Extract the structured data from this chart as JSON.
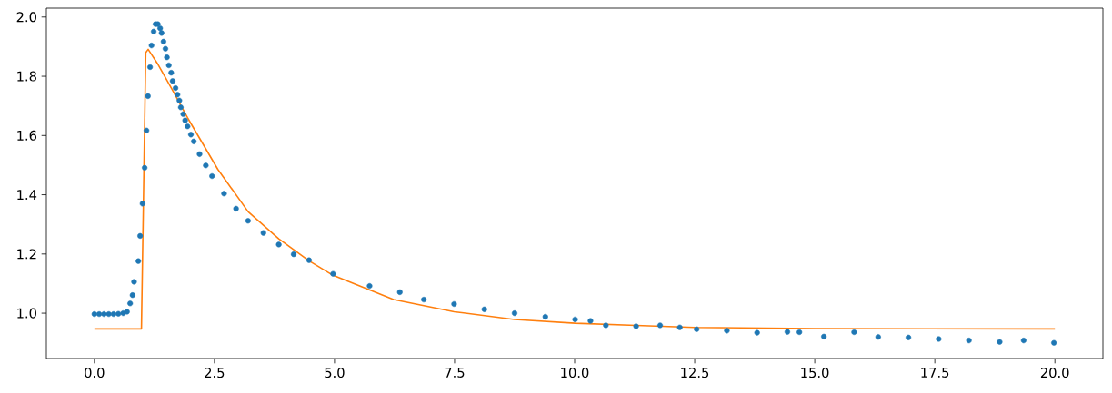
{
  "chart_data": {
    "type": "scatter",
    "xlim": [
      -1,
      21
    ],
    "ylim": [
      0.847,
      2.03
    ],
    "xticks": [
      {
        "value": 0,
        "label": "0.0"
      },
      {
        "value": 2.5,
        "label": "2.5"
      },
      {
        "value": 5,
        "label": "5.0"
      },
      {
        "value": 7.5,
        "label": "7.5"
      },
      {
        "value": 10,
        "label": "10.0"
      },
      {
        "value": 12.5,
        "label": "12.5"
      },
      {
        "value": 15,
        "label": "15.0"
      },
      {
        "value": 17.5,
        "label": "17.5"
      },
      {
        "value": 20,
        "label": "20.0"
      }
    ],
    "yticks": [
      {
        "value": 1,
        "label": "1.0"
      },
      {
        "value": 1.2,
        "label": "1.2"
      },
      {
        "value": 1.4,
        "label": "1.4"
      },
      {
        "value": 1.6,
        "label": "1.6"
      },
      {
        "value": 1.8,
        "label": "1.8"
      },
      {
        "value": 2,
        "label": "2.0"
      }
    ],
    "series": [
      {
        "marker": "circle",
        "color": "#1f77b4",
        "x": [
          0.0,
          0.1,
          0.2,
          0.3,
          0.4,
          0.5,
          0.6,
          0.68,
          0.745,
          0.795,
          0.826,
          0.915,
          0.953,
          1.003,
          1.047,
          1.085,
          1.116,
          1.16,
          1.19,
          1.235,
          1.274,
          1.32,
          1.37,
          1.4,
          1.44,
          1.48,
          1.51,
          1.55,
          1.6,
          1.63,
          1.69,
          1.73,
          1.77,
          1.8,
          1.85,
          1.89,
          1.94,
          2.01,
          2.07,
          2.19,
          2.32,
          2.45,
          2.7,
          2.95,
          3.2,
          3.52,
          3.84,
          4.15,
          4.47,
          4.97,
          5.73,
          6.36,
          6.86,
          7.49,
          8.12,
          8.75,
          9.39,
          10.01,
          10.33,
          10.65,
          11.28,
          11.78,
          12.19,
          12.54,
          13.17,
          13.8,
          14.43,
          14.68,
          15.19,
          15.82,
          16.32,
          16.95,
          17.58,
          18.21,
          18.85,
          19.35,
          19.98
        ],
        "values": [
          0.997,
          0.997,
          0.997,
          0.997,
          0.997,
          0.998,
          1.0,
          1.005,
          1.033,
          1.061,
          1.106,
          1.176,
          1.261,
          1.37,
          1.491,
          1.617,
          1.733,
          1.831,
          1.904,
          1.951,
          1.976,
          1.976,
          1.962,
          1.946,
          1.917,
          1.893,
          1.864,
          1.837,
          1.812,
          1.784,
          1.76,
          1.738,
          1.718,
          1.695,
          1.672,
          1.651,
          1.631,
          1.603,
          1.58,
          1.537,
          1.499,
          1.463,
          1.404,
          1.353,
          1.312,
          1.271,
          1.232,
          1.199,
          1.179,
          1.133,
          1.092,
          1.071,
          1.046,
          1.031,
          1.013,
          1.0,
          0.988,
          0.979,
          0.974,
          0.959,
          0.956,
          0.959,
          0.952,
          0.946,
          0.941,
          0.934,
          0.937,
          0.936,
          0.921,
          0.936,
          0.92,
          0.918,
          0.913,
          0.908,
          0.903,
          0.908,
          0.9
        ]
      },
      {
        "type": "line",
        "marker": "none",
        "color": "#ff7f0e",
        "x": [
          0,
          0.98,
          1.07,
          1.12,
          1.31,
          1.63,
          1.94,
          2.57,
          3.2,
          3.84,
          4.47,
          4.97,
          6.23,
          7.49,
          8.75,
          10.01,
          11.28,
          12.5,
          15,
          20
        ],
        "values": [
          0.947,
          0.947,
          1.88,
          1.891,
          1.844,
          1.752,
          1.66,
          1.486,
          1.343,
          1.251,
          1.177,
          1.128,
          1.046,
          1.005,
          0.979,
          0.966,
          0.959,
          0.952,
          0.948,
          0.947
        ]
      }
    ]
  }
}
